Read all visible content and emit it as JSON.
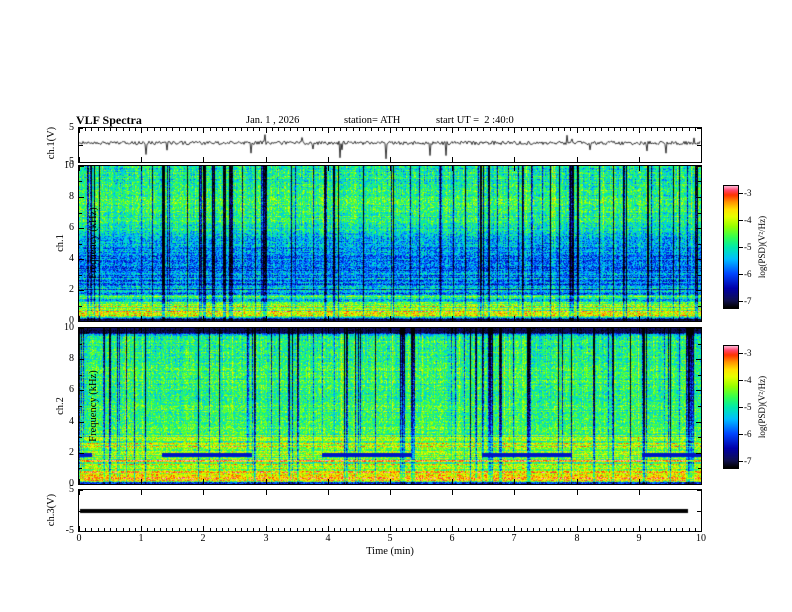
{
  "header": {
    "title": "VLF Spectra",
    "date": "Jan. 1 , 2026",
    "station": "station= ATH",
    "start_ut": "start UT =  2 :40:0"
  },
  "xaxis": {
    "label": "Time (min)",
    "ticks": [
      "0",
      "1",
      "2",
      "3",
      "4",
      "5",
      "6",
      "7",
      "8",
      "9",
      "10"
    ],
    "range": [
      0,
      10
    ]
  },
  "colorbar": {
    "label": "log(PSD)(V²/Hz)",
    "ticks": [
      "-3",
      "-4",
      "-5",
      "-6",
      "-7"
    ],
    "range": [
      -7,
      -3
    ],
    "colormap": "rainbow: black -> dark blue -> blue -> cyan -> green -> yellow -> orange -> red -> pink"
  },
  "chart_data": [
    {
      "type": "line",
      "name": "ch1_voltage_trace",
      "ylabel": "ch.1(V)",
      "ylim": [
        -5,
        5
      ],
      "yticks": [
        "5",
        "-5"
      ],
      "xlim": [
        0,
        10
      ],
      "series_desc": "continuous noisy voltage trace fluctuating near 0 V with sporadic negative impulse spikes of 1-4 V over 10 minutes",
      "baseline_v": 0.5,
      "noise_amp": 0.55,
      "spike_prob": 0.012,
      "seed": 11
    },
    {
      "type": "heatmap",
      "name": "ch1_spectrogram",
      "ylabel_channel": "ch.1",
      "ylabel_axis": "Frequency (kHz)",
      "ylim": [
        0,
        10
      ],
      "yticks": [
        "0",
        "2",
        "4",
        "6",
        "8",
        "10"
      ],
      "xlim": [
        0,
        10
      ],
      "zlabel": "log(PSD)(V²/Hz)",
      "zlim": [
        -7,
        -3
      ],
      "content_desc": "green/cyan broadband background 5-10 kHz cut by many dark-blue vertical impulse streaks; blue low-PSD region 2-5 kHz with thin cyan horizontal lines; bright yellow/orange horizontal bands below 1 kHz and a black strip at 0 kHz",
      "profile": [
        [
          0,
          0.04
        ],
        [
          0.012,
          0.12
        ],
        [
          0.03,
          0.68
        ],
        [
          0.055,
          0.75
        ],
        [
          0.09,
          0.58
        ],
        [
          0.13,
          0.46
        ],
        [
          0.18,
          0.36
        ],
        [
          0.3,
          0.3
        ],
        [
          0.42,
          0.34
        ],
        [
          0.52,
          0.42
        ],
        [
          0.62,
          0.52
        ],
        [
          0.75,
          0.56
        ],
        [
          0.88,
          0.52
        ],
        [
          1,
          0.5
        ]
      ],
      "streak_prob": 0.11,
      "noise": 0.3,
      "seed": 42
    },
    {
      "type": "heatmap",
      "name": "ch2_spectrogram",
      "ylabel_channel": "ch.2",
      "ylabel_axis": "Frequency (kHz)",
      "ylim": [
        0,
        10
      ],
      "yticks": [
        "0",
        "2",
        "4",
        "6",
        "8",
        "10"
      ],
      "xlim": [
        0,
        10
      ],
      "zlabel": "log(PSD)(V²/Hz)",
      "zlim": [
        -7,
        -3
      ],
      "content_desc": "mostly green speckled background with blue vertical impulse streaks above 4 kHz; strong yellow/orange horizontal banding below 3 kHz; grey dashed dropout band near 2 kHz; black strip at the very top (10 kHz) and near 0 kHz",
      "profile": [
        [
          0,
          0.12
        ],
        [
          0.015,
          0.6
        ],
        [
          0.03,
          0.78
        ],
        [
          0.06,
          0.68
        ],
        [
          0.1,
          0.64
        ],
        [
          0.14,
          0.7
        ],
        [
          0.19,
          0.58
        ],
        [
          0.24,
          0.7
        ],
        [
          0.3,
          0.6
        ],
        [
          0.4,
          0.57
        ],
        [
          0.55,
          0.55
        ],
        [
          0.75,
          0.55
        ],
        [
          0.92,
          0.52
        ],
        [
          0.958,
          0.45
        ],
        [
          0.972,
          0.05
        ],
        [
          1,
          0.05
        ]
      ],
      "streak_prob": 0.09,
      "noise": 0.28,
      "dropout_band_fn": 0.185,
      "seed": 77
    },
    {
      "type": "line",
      "name": "ch3_voltage_trace",
      "ylabel": "ch.3(V)",
      "ylim": [
        -5,
        5
      ],
      "yticks": [
        "5",
        "-5"
      ],
      "xlim": [
        0,
        10
      ],
      "series_desc": "flat constant 0 V thick black line ending near 9.7 min",
      "flat": true,
      "seed": 5
    }
  ]
}
